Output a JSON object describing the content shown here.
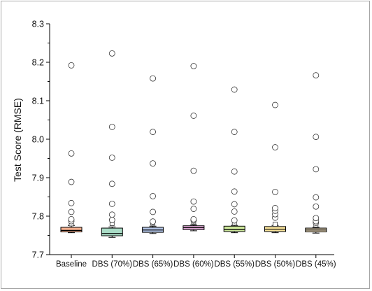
{
  "chart_data": {
    "type": "box",
    "title": "",
    "xlabel": "",
    "ylabel": "Test Score (RMSE)",
    "ylim": [
      7.7,
      8.3
    ],
    "yticks": [
      "7.7",
      "7.8",
      "7.9",
      "8.0",
      "8.1",
      "8.2",
      "8.3"
    ],
    "grid": false,
    "categories": [
      "Baseline",
      "DBS (70%)",
      "DBS (65%)",
      "DBS (60%)",
      "DBS (55%)",
      "DBS (50%)",
      "DBS (45%)"
    ],
    "colors": [
      "#f5b08f",
      "#a9dcc6",
      "#b2c4e6",
      "#f3b5e8",
      "#cde89b",
      "#f9e49a",
      "#e5d6b6"
    ],
    "boxes": [
      {
        "q1": 7.759,
        "median": 7.763,
        "q3": 7.771,
        "whisker_low": 7.757,
        "whisker_high": 7.776,
        "mean": 7.78,
        "outliers": [
          7.787,
          7.792,
          7.811,
          7.834,
          7.889,
          7.963,
          8.192
        ]
      },
      {
        "q1": 7.749,
        "median": 7.755,
        "q3": 7.769,
        "whisker_low": 7.745,
        "whisker_high": 7.772,
        "mean": 7.781,
        "outliers": [
          7.79,
          7.804,
          7.832,
          7.884,
          7.952,
          8.032,
          8.223
        ]
      },
      {
        "q1": 7.758,
        "median": 7.764,
        "q3": 7.771,
        "whisker_low": 7.755,
        "whisker_high": 7.774,
        "mean": 7.782,
        "outliers": [
          7.786,
          7.811,
          7.852,
          7.937,
          8.019,
          8.158
        ]
      },
      {
        "q1": 7.765,
        "median": 7.77,
        "q3": 7.775,
        "whisker_low": 7.762,
        "whisker_high": 7.777,
        "mean": 7.785,
        "outliers": [
          7.789,
          7.792,
          7.819,
          7.838,
          7.918,
          8.061,
          8.19
        ]
      },
      {
        "q1": 7.76,
        "median": 7.765,
        "q3": 7.774,
        "whisker_low": 7.757,
        "whisker_high": 7.776,
        "mean": 7.782,
        "outliers": [
          7.789,
          7.812,
          7.831,
          7.864,
          7.916,
          8.019,
          8.129
        ]
      },
      {
        "q1": 7.76,
        "median": 7.766,
        "q3": 7.773,
        "whisker_low": 7.757,
        "whisker_high": 7.776,
        "mean": 7.779,
        "outliers": [
          7.796,
          7.805,
          7.814,
          7.821,
          7.863,
          7.979,
          8.089
        ]
      },
      {
        "q1": 7.759,
        "median": 7.764,
        "q3": 7.769,
        "whisker_low": 7.756,
        "whisker_high": 7.771,
        "mean": 7.777,
        "outliers": [
          7.783,
          7.787,
          7.795,
          7.825,
          7.849,
          7.922,
          8.006,
          8.166
        ]
      }
    ]
  }
}
